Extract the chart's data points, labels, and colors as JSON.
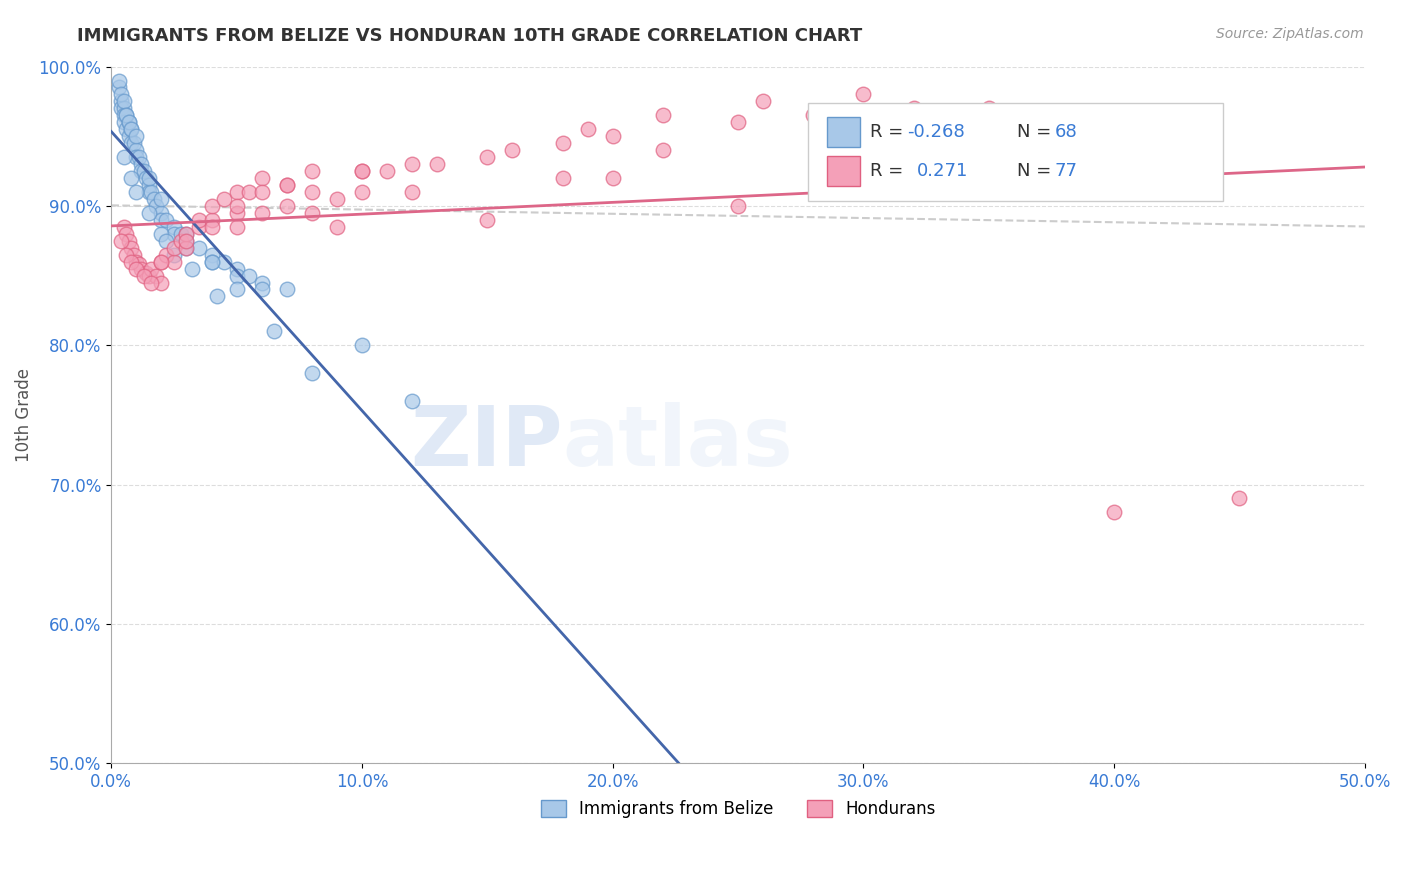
{
  "title": "IMMIGRANTS FROM BELIZE VS HONDURAN 10TH GRADE CORRELATION CHART",
  "source_text": "Source: ZipAtlas.com",
  "ylabel": "10th Grade",
  "xlim": [
    0.0,
    50.0
  ],
  "ylim": [
    50.0,
    100.0
  ],
  "xtick_labels": [
    "0.0%",
    "10.0%",
    "20.0%",
    "30.0%",
    "40.0%",
    "50.0%"
  ],
  "ytick_labels": [
    "50.0%",
    "60.0%",
    "70.0%",
    "80.0%",
    "90.0%",
    "100.0%"
  ],
  "color_blue": "#a8c8e8",
  "color_pink": "#f4a0b8",
  "edge_blue": "#6699cc",
  "edge_pink": "#e06080",
  "trend_blue": "#4466aa",
  "trend_pink": "#dd6688",
  "trend_dashed": "#cccccc",
  "legend_label1": "Immigrants from Belize",
  "legend_label2": "Hondurans",
  "blue_x": [
    0.3,
    0.4,
    0.4,
    0.5,
    0.5,
    0.5,
    0.6,
    0.6,
    0.7,
    0.7,
    0.8,
    0.8,
    0.9,
    1.0,
    1.0,
    1.1,
    1.2,
    1.2,
    1.3,
    1.4,
    1.5,
    1.5,
    1.6,
    1.7,
    1.8,
    2.0,
    2.0,
    2.2,
    2.5,
    2.5,
    2.8,
    3.0,
    3.0,
    3.5,
    4.0,
    4.0,
    4.5,
    5.0,
    5.0,
    5.5,
    6.0,
    6.0,
    7.0,
    0.3,
    0.4,
    0.5,
    0.6,
    0.7,
    0.8,
    1.0,
    1.5,
    2.0,
    3.0,
    4.0,
    5.0,
    0.5,
    0.8,
    1.0,
    1.5,
    2.0,
    2.5,
    10.0,
    12.0,
    8.0,
    6.5,
    4.2,
    3.2,
    2.2
  ],
  "blue_y": [
    98.5,
    97.5,
    97.0,
    97.0,
    96.5,
    96.0,
    96.5,
    95.5,
    96.0,
    95.0,
    95.5,
    94.5,
    94.5,
    94.0,
    93.5,
    93.5,
    93.0,
    92.5,
    92.5,
    92.0,
    91.5,
    91.0,
    91.0,
    90.5,
    90.0,
    89.5,
    89.0,
    89.0,
    88.5,
    88.0,
    88.0,
    87.5,
    87.0,
    87.0,
    86.5,
    86.0,
    86.0,
    85.5,
    85.0,
    85.0,
    84.5,
    84.0,
    84.0,
    99.0,
    98.0,
    97.5,
    96.5,
    96.0,
    95.5,
    95.0,
    92.0,
    90.5,
    88.0,
    86.0,
    84.0,
    93.5,
    92.0,
    91.0,
    89.5,
    88.0,
    86.5,
    80.0,
    76.0,
    78.0,
    81.0,
    83.5,
    85.5,
    87.5
  ],
  "pink_x": [
    0.5,
    0.6,
    0.7,
    0.8,
    0.9,
    1.0,
    1.1,
    1.2,
    1.4,
    1.5,
    1.6,
    1.8,
    2.0,
    2.0,
    2.2,
    2.5,
    2.5,
    2.8,
    3.0,
    3.0,
    3.5,
    3.5,
    4.0,
    4.0,
    4.5,
    5.0,
    5.0,
    5.5,
    6.0,
    6.0,
    7.0,
    7.0,
    8.0,
    8.0,
    9.0,
    10.0,
    10.0,
    12.0,
    12.0,
    15.0,
    15.0,
    18.0,
    18.0,
    20.0,
    20.0,
    22.0,
    25.0,
    25.0,
    28.0,
    30.0,
    30.0,
    32.0,
    35.0,
    40.0,
    45.0,
    0.4,
    0.6,
    0.8,
    1.0,
    1.3,
    1.6,
    2.0,
    3.0,
    4.0,
    5.0,
    6.0,
    8.0,
    10.0,
    13.0,
    16.0,
    19.0,
    22.0,
    26.0,
    5.0,
    7.0,
    9.0,
    11.0
  ],
  "pink_y": [
    88.5,
    88.0,
    87.5,
    87.0,
    86.5,
    86.0,
    85.8,
    85.5,
    85.2,
    85.0,
    85.5,
    85.0,
    84.5,
    86.0,
    86.5,
    86.0,
    87.0,
    87.5,
    87.0,
    88.0,
    88.5,
    89.0,
    89.0,
    90.0,
    90.5,
    91.0,
    88.5,
    91.0,
    92.0,
    89.5,
    91.5,
    90.0,
    92.5,
    89.5,
    88.5,
    91.0,
    92.5,
    91.0,
    93.0,
    93.5,
    89.0,
    92.0,
    94.5,
    92.0,
    95.0,
    94.0,
    90.0,
    96.0,
    96.5,
    93.0,
    98.0,
    97.0,
    97.0,
    68.0,
    69.0,
    87.5,
    86.5,
    86.0,
    85.5,
    85.0,
    84.5,
    86.0,
    87.5,
    88.5,
    89.5,
    91.0,
    91.0,
    92.5,
    93.0,
    94.0,
    95.5,
    96.5,
    97.5,
    90.0,
    91.5,
    90.5,
    92.5
  ]
}
